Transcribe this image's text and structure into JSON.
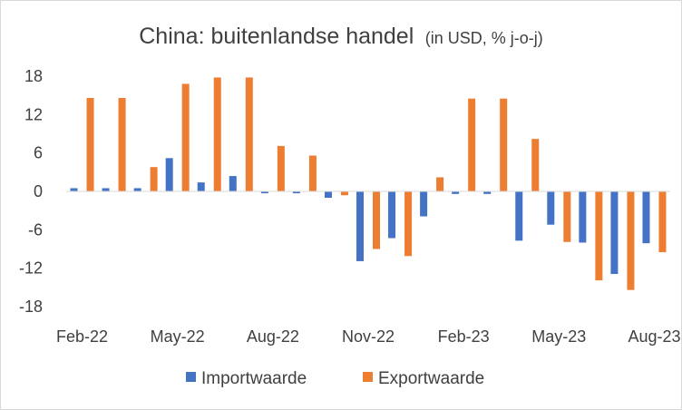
{
  "chart_data": {
    "type": "bar",
    "title": "China: buitenlandse handel",
    "subtitle": "(in USD, % j-o-j)",
    "categories": [
      "Feb-22",
      "Mar-22",
      "Apr-22",
      "May-22",
      "Jun-22",
      "Jul-22",
      "Aug-22",
      "Sep-22",
      "Oct-22",
      "Nov-22",
      "Dec-22",
      "Jan-23",
      "Feb-23",
      "Mar-23",
      "Apr-23",
      "May-23",
      "Jun-23",
      "Jul-23",
      "Aug-23"
    ],
    "x_tick_labels": [
      "Feb-22",
      "May-22",
      "Aug-22",
      "Nov-22",
      "Feb-23",
      "May-23",
      "Aug-23"
    ],
    "series": [
      {
        "name": "Importwaarde",
        "color": "#4472C4",
        "values": [
          0.5,
          0.5,
          0.5,
          5.2,
          1.4,
          2.4,
          -0.3,
          -0.3,
          -1.0,
          -10.9,
          -7.3,
          -3.9,
          -0.4,
          -0.4,
          -7.7,
          -5.2,
          -8.0,
          -12.9,
          -8.1
        ]
      },
      {
        "name": "Exportwaarde",
        "color": "#ED7D31",
        "values": [
          14.6,
          14.6,
          3.8,
          16.8,
          17.8,
          17.8,
          7.1,
          5.6,
          -0.6,
          -9.0,
          -10.1,
          2.2,
          14.5,
          14.5,
          8.2,
          -7.9,
          -13.9,
          -15.4,
          -9.5
        ]
      }
    ],
    "yticks": [
      18,
      12,
      6,
      0,
      -6,
      -12,
      -18
    ],
    "ylim": [
      -18,
      18
    ],
    "grid": false,
    "legend_position": "bottom"
  }
}
